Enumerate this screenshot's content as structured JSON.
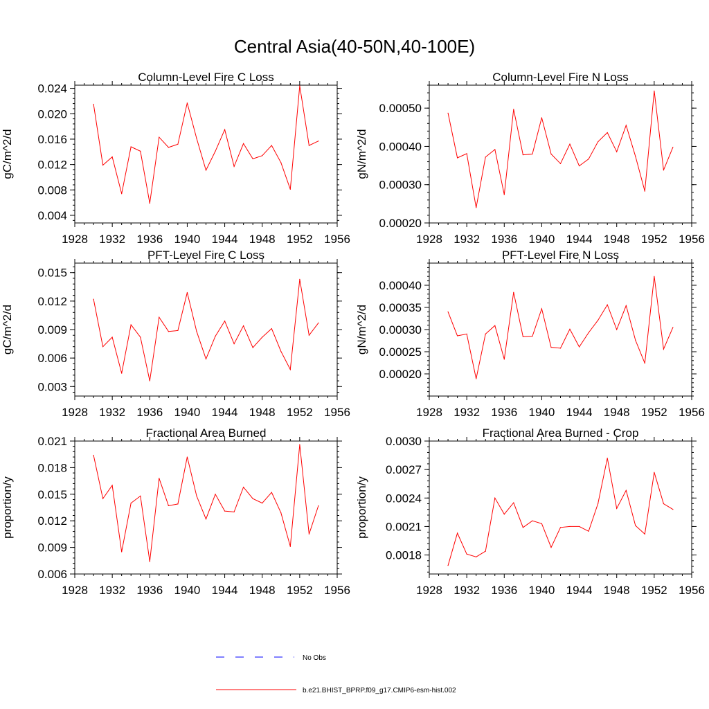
{
  "figure": {
    "title": "Central Asia(40-50N,40-100E)"
  },
  "colors": {
    "model": "#ff0000",
    "obs": "#0000ff",
    "axis": "#000000"
  },
  "legend": {
    "obs_label": "No Obs",
    "model_label": "b.e21.BHIST_BPRP.f09_g17.CMIP6-esm-hist.002"
  },
  "chart_data": [
    {
      "type": "line",
      "title": "Column-Level Fire C Loss",
      "xlabel": "",
      "ylabel": "gC/m^2/d",
      "xlim": [
        1928,
        1956
      ],
      "ylim": [
        0.0028,
        0.0245
      ],
      "xticks": [
        1928,
        1932,
        1936,
        1940,
        1944,
        1948,
        1952,
        1956
      ],
      "xtick_labels": [
        "1928",
        "1932",
        "1936",
        "1940",
        "1944",
        "1948",
        "1952",
        "1956"
      ],
      "yticks": [
        0.004,
        0.008,
        0.012,
        0.016,
        0.02,
        0.024
      ],
      "ytick_labels": [
        "0.004",
        "0.008",
        "0.012",
        "0.016",
        "0.020",
        "0.024"
      ],
      "x": [
        1930,
        1931,
        1932,
        1933,
        1934,
        1935,
        1936,
        1937,
        1938,
        1939,
        1940,
        1941,
        1942,
        1943,
        1944,
        1945,
        1946,
        1947,
        1948,
        1949,
        1950,
        1951,
        1952,
        1953,
        1954
      ],
      "series": [
        {
          "name": "b.e21.BHIST_BPRP.f09_g17.CMIP6-esm-hist.002",
          "values": [
            0.0215,
            0.0119,
            0.0132,
            0.0074,
            0.0148,
            0.0141,
            0.0059,
            0.0163,
            0.0147,
            0.0152,
            0.0217,
            0.0161,
            0.0111,
            0.0141,
            0.0175,
            0.0117,
            0.0153,
            0.0129,
            0.0134,
            0.015,
            0.0123,
            0.0081,
            0.0244,
            0.015,
            0.0157
          ]
        }
      ]
    },
    {
      "type": "line",
      "title": "Column-Level Fire N Loss",
      "xlabel": "",
      "ylabel": "gN/m^2/d",
      "xlim": [
        1928,
        1956
      ],
      "ylim": [
        0.0002,
        0.00056
      ],
      "xticks": [
        1928,
        1932,
        1936,
        1940,
        1944,
        1948,
        1952,
        1956
      ],
      "xtick_labels": [
        "1928",
        "1932",
        "1936",
        "1940",
        "1944",
        "1948",
        "1952",
        "1956"
      ],
      "yticks": [
        0.0002,
        0.0003,
        0.0004,
        0.0005
      ],
      "ytick_labels": [
        "0.00020",
        "0.00030",
        "0.00040",
        "0.00050"
      ],
      "x": [
        1930,
        1931,
        1932,
        1933,
        1934,
        1935,
        1936,
        1937,
        1938,
        1939,
        1940,
        1941,
        1942,
        1943,
        1944,
        1945,
        1946,
        1947,
        1948,
        1949,
        1950,
        1951,
        1952,
        1953,
        1954
      ],
      "series": [
        {
          "name": "b.e21.BHIST_BPRP.f09_g17.CMIP6-esm-hist.002",
          "values": [
            0.000487,
            0.00037,
            0.000381,
            0.00024,
            0.000372,
            0.000392,
            0.000274,
            0.000497,
            0.000378,
            0.00038,
            0.000475,
            0.00038,
            0.000355,
            0.000406,
            0.000349,
            0.000367,
            0.000412,
            0.000436,
            0.000386,
            0.000455,
            0.000374,
            0.000283,
            0.000545,
            0.000338,
            0.000398
          ]
        }
      ]
    },
    {
      "type": "line",
      "title": "PFT-Level Fire C Loss",
      "xlabel": "",
      "ylabel": "gC/m^2/d",
      "xlim": [
        1928,
        1956
      ],
      "ylim": [
        0.002,
        0.016
      ],
      "xticks": [
        1928,
        1932,
        1936,
        1940,
        1944,
        1948,
        1952,
        1956
      ],
      "xtick_labels": [
        "1928",
        "1932",
        "1936",
        "1940",
        "1944",
        "1948",
        "1952",
        "1956"
      ],
      "yticks": [
        0.003,
        0.006,
        0.009,
        0.012,
        0.015
      ],
      "ytick_labels": [
        "0.003",
        "0.006",
        "0.009",
        "0.012",
        "0.015"
      ],
      "x": [
        1930,
        1931,
        1932,
        1933,
        1934,
        1935,
        1936,
        1937,
        1938,
        1939,
        1940,
        1941,
        1942,
        1943,
        1944,
        1945,
        1946,
        1947,
        1948,
        1949,
        1950,
        1951,
        1952,
        1953,
        1954
      ],
      "series": [
        {
          "name": "b.e21.BHIST_BPRP.f09_g17.CMIP6-esm-hist.002",
          "values": [
            0.0122,
            0.0072,
            0.0082,
            0.0044,
            0.0095,
            0.0082,
            0.0036,
            0.0103,
            0.0088,
            0.0089,
            0.0129,
            0.0088,
            0.0059,
            0.0083,
            0.0099,
            0.0075,
            0.0094,
            0.0071,
            0.0082,
            0.0091,
            0.0067,
            0.0048,
            0.0143,
            0.0084,
            0.0097
          ]
        }
      ]
    },
    {
      "type": "line",
      "title": "PFT-Level Fire N Loss",
      "xlabel": "",
      "ylabel": "gN/m^2/d",
      "xlim": [
        1928,
        1956
      ],
      "ylim": [
        0.00015,
        0.00045
      ],
      "xticks": [
        1928,
        1932,
        1936,
        1940,
        1944,
        1948,
        1952,
        1956
      ],
      "xtick_labels": [
        "1928",
        "1932",
        "1936",
        "1940",
        "1944",
        "1948",
        "1952",
        "1956"
      ],
      "yticks": [
        0.0002,
        0.00025,
        0.0003,
        0.00035,
        0.0004
      ],
      "ytick_labels": [
        "0.00020",
        "0.00025",
        "0.00030",
        "0.00035",
        "0.00040"
      ],
      "x": [
        1930,
        1931,
        1932,
        1933,
        1934,
        1935,
        1936,
        1937,
        1938,
        1939,
        1940,
        1941,
        1942,
        1943,
        1944,
        1945,
        1946,
        1947,
        1948,
        1949,
        1950,
        1951,
        1952,
        1953,
        1954
      ],
      "series": [
        {
          "name": "b.e21.BHIST_BPRP.f09_g17.CMIP6-esm-hist.002",
          "values": [
            0.00034,
            0.000286,
            0.00029,
            0.000189,
            0.00029,
            0.000309,
            0.000233,
            0.000384,
            0.000284,
            0.000285,
            0.000347,
            0.00026,
            0.000258,
            0.000301,
            0.000261,
            0.000293,
            0.000321,
            0.000356,
            0.0003,
            0.000354,
            0.000276,
            0.000224,
            0.00042,
            0.000256,
            0.000305
          ]
        }
      ]
    },
    {
      "type": "line",
      "title": "Fractional Area Burned",
      "xlabel": "",
      "ylabel": "proportion/y",
      "xlim": [
        1928,
        1956
      ],
      "ylim": [
        0.006,
        0.021
      ],
      "xticks": [
        1928,
        1932,
        1936,
        1940,
        1944,
        1948,
        1952,
        1956
      ],
      "xtick_labels": [
        "1928",
        "1932",
        "1936",
        "1940",
        "1944",
        "1948",
        "1952",
        "1956"
      ],
      "yticks": [
        0.006,
        0.009,
        0.012,
        0.015,
        0.018,
        0.021
      ],
      "ytick_labels": [
        "0.006",
        "0.009",
        "0.012",
        "0.015",
        "0.018",
        "0.021"
      ],
      "x": [
        1930,
        1931,
        1932,
        1933,
        1934,
        1935,
        1936,
        1937,
        1938,
        1939,
        1940,
        1941,
        1942,
        1943,
        1944,
        1945,
        1946,
        1947,
        1948,
        1949,
        1950,
        1951,
        1952,
        1953,
        1954
      ],
      "series": [
        {
          "name": "b.e21.BHIST_BPRP.f09_g17.CMIP6-esm-hist.002",
          "values": [
            0.0194,
            0.0145,
            0.016,
            0.0085,
            0.014,
            0.0148,
            0.0074,
            0.0168,
            0.0137,
            0.0139,
            0.0192,
            0.0148,
            0.0122,
            0.015,
            0.0131,
            0.013,
            0.0158,
            0.0145,
            0.014,
            0.0152,
            0.0129,
            0.0091,
            0.0206,
            0.0105,
            0.0137
          ]
        }
      ]
    },
    {
      "type": "line",
      "title": "Fractional Area Burned - Crop",
      "xlabel": "",
      "ylabel": "proportion/y",
      "xlim": [
        1928,
        1956
      ],
      "ylim": [
        0.0016,
        0.003
      ],
      "xticks": [
        1928,
        1932,
        1936,
        1940,
        1944,
        1948,
        1952,
        1956
      ],
      "xtick_labels": [
        "1928",
        "1932",
        "1936",
        "1940",
        "1944",
        "1948",
        "1952",
        "1956"
      ],
      "yticks": [
        0.0018,
        0.0021,
        0.0024,
        0.0027,
        0.003
      ],
      "ytick_labels": [
        "0.0018",
        "0.0021",
        "0.0024",
        "0.0027",
        "0.0030"
      ],
      "x": [
        1930,
        1931,
        1932,
        1933,
        1934,
        1935,
        1936,
        1937,
        1938,
        1939,
        1940,
        1941,
        1942,
        1943,
        1944,
        1945,
        1946,
        1947,
        1948,
        1949,
        1950,
        1951,
        1952,
        1953,
        1954
      ],
      "series": [
        {
          "name": "b.e21.BHIST_BPRP.f09_g17.CMIP6-esm-hist.002",
          "values": [
            0.00169,
            0.00203,
            0.00181,
            0.00178,
            0.00184,
            0.0024,
            0.00223,
            0.00235,
            0.00209,
            0.00216,
            0.00213,
            0.00188,
            0.00209,
            0.0021,
            0.0021,
            0.00205,
            0.00234,
            0.00282,
            0.00229,
            0.00248,
            0.00211,
            0.00202,
            0.00267,
            0.00234,
            0.00228
          ]
        }
      ]
    }
  ]
}
